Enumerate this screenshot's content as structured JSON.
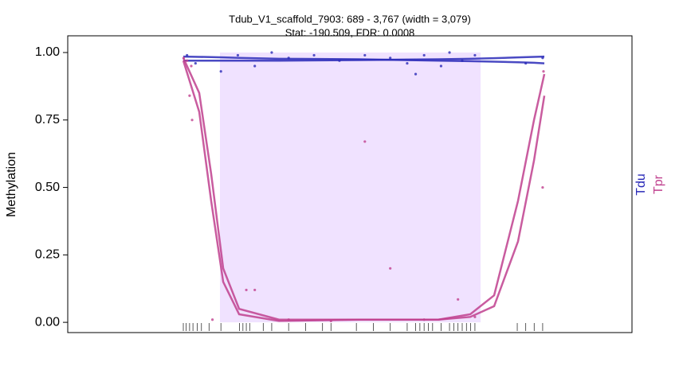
{
  "chart_data": {
    "type": "line",
    "title": "Tdub_V1_scaffold_7903: 689 - 3,767 (width = 3,079)",
    "subtitle": "Stat: -190.509, FDR: 0.0008",
    "y_label": "Methylation",
    "xlim": [
      -1109,
      5555
    ],
    "ylim": [
      -0.038,
      1.062
    ],
    "yticks": [
      {
        "value": 0,
        "label": "0.00"
      },
      {
        "value": 0.25,
        "label": "0.25"
      },
      {
        "value": 0.5,
        "label": "0.50"
      },
      {
        "value": 0.75,
        "label": "0.75"
      },
      {
        "value": 1,
        "label": "1.00"
      }
    ],
    "highlight": [
      689,
      3767
    ],
    "highlight_color": "#f0e2ff",
    "x": [
      256,
      444,
      585,
      727,
      915,
      1386,
      2327,
      3268,
      3645,
      3927,
      4209,
      4398,
      4520
    ],
    "series": [
      {
        "name": "Tdu",
        "color": "#2a2ab8",
        "values": [
          0.97,
          0.97,
          0.97,
          0.97,
          0.97,
          0.97,
          0.972,
          0.975,
          0.977,
          0.979,
          0.982,
          0.984,
          0.985
        ],
        "values2": [
          0.985,
          0.984,
          0.983,
          0.982,
          0.98,
          0.977,
          0.975,
          0.97,
          0.968,
          0.966,
          0.964,
          0.962,
          0.96
        ],
        "points_x": [
          300,
          400,
          700,
          900,
          1100,
          1300,
          1500,
          1800,
          2100,
          2400,
          2700,
          2900,
          3000,
          3100,
          3300,
          3400,
          3550,
          3700,
          4300,
          4500
        ],
        "points": [
          0.99,
          0.96,
          0.93,
          0.99,
          0.95,
          1.0,
          0.98,
          0.99,
          0.97,
          0.99,
          0.98,
          0.96,
          0.92,
          0.99,
          0.95,
          1.0,
          0.97,
          0.99,
          0.96,
          0.98
        ]
      },
      {
        "name": "Tpr",
        "color": "#c0408e",
        "values": [
          0.98,
          0.85,
          0.55,
          0.2,
          0.05,
          0.01,
          0.01,
          0.01,
          0.03,
          0.1,
          0.45,
          0.75,
          0.92
        ],
        "values2": [
          0.97,
          0.78,
          0.45,
          0.15,
          0.03,
          0.005,
          0.01,
          0.01,
          0.02,
          0.06,
          0.3,
          0.6,
          0.84
        ],
        "points_x": [
          260,
          300,
          350,
          330,
          360,
          600,
          1000,
          1100,
          1500,
          2000,
          2400,
          2700,
          3100,
          3500,
          3700,
          4500,
          4510
        ],
        "points": [
          0.98,
          0.97,
          0.95,
          0.84,
          0.75,
          0.01,
          0.12,
          0.12,
          0.01,
          0.005,
          0.67,
          0.2,
          0.01,
          0.085,
          0.02,
          0.5,
          0.93
        ]
      }
    ],
    "rug": [
      256,
      290,
      330,
      370,
      420,
      470,
      560,
      700,
      920,
      960,
      1000,
      1040,
      1200,
      1300,
      1500,
      1700,
      1900,
      2000,
      2300,
      2500,
      2700,
      2900,
      3000,
      3050,
      3100,
      3150,
      3200,
      3300,
      3400,
      3450,
      3500,
      3550,
      3600,
      3650,
      3700,
      4200,
      4300,
      4400,
      4500
    ]
  }
}
